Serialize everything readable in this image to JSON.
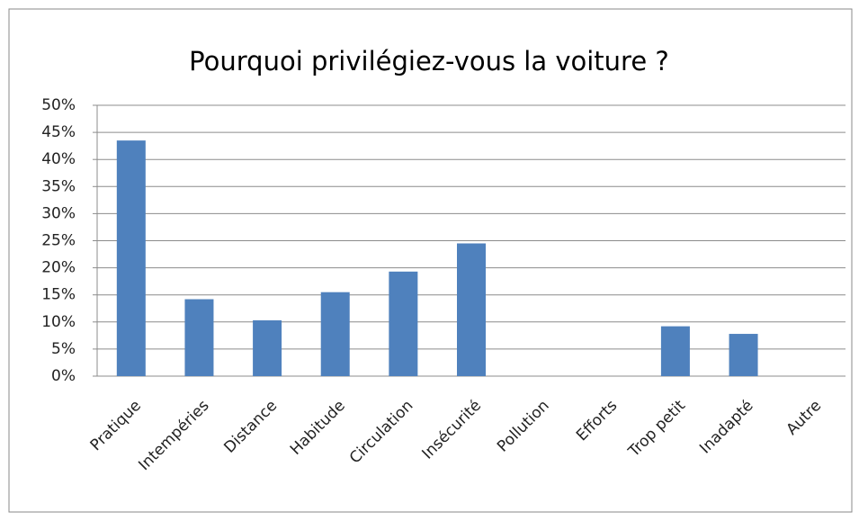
{
  "chart_data": {
    "type": "bar",
    "title": "Pourquoi  privilégiez-vous la voiture ?",
    "categories": [
      "Pratique",
      "Intempéries",
      "Distance",
      "Habitude",
      "Circulation",
      "Insécurité",
      "Pollution",
      "Efforts",
      "Trop petit",
      "Inadapté",
      "Autre"
    ],
    "values": [
      43.5,
      14.2,
      10.3,
      15.5,
      19.3,
      24.5,
      0,
      0,
      9.2,
      7.8,
      0
    ],
    "color": "#4f81bd",
    "ylim": [
      0,
      50
    ],
    "yticks": [
      {
        "value": 0,
        "label": "0%"
      },
      {
        "value": 5,
        "label": "5%"
      },
      {
        "value": 10,
        "label": "10%"
      },
      {
        "value": 15,
        "label": "15%"
      },
      {
        "value": 20,
        "label": "20%"
      },
      {
        "value": 25,
        "label": "25%"
      },
      {
        "value": 30,
        "label": "30%"
      },
      {
        "value": 35,
        "label": "35%"
      },
      {
        "value": 40,
        "label": "40%"
      },
      {
        "value": 45,
        "label": "45%"
      },
      {
        "value": 50,
        "label": "50%"
      }
    ],
    "grid": true
  }
}
